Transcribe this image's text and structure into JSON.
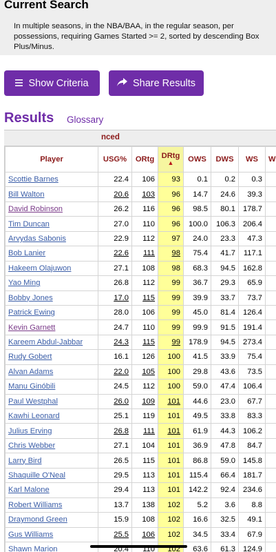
{
  "current_search": {
    "title": "Current Search",
    "description": "In multiple seasons, in the NBA/BAA, in the regular season, per possessions, requiring Games Started >= 2, sorted by descending Box Plus/Minus."
  },
  "buttons": {
    "show_criteria": "Show Criteria",
    "share_results": "Share Results"
  },
  "results": {
    "title": "Results",
    "glossary": "Glossary"
  },
  "section_label": "nced",
  "columns": [
    "Player",
    "USG%",
    "ORtg",
    "DRtg",
    "OWS",
    "DWS",
    "WS",
    "WS"
  ],
  "sort_arrow": "▲",
  "rows": [
    {
      "player": "Scottie Barnes",
      "usg": "22.4",
      "ortg": "106",
      "drtg": "93",
      "ows": "0.1",
      "dws": "0.2",
      "ws": "0.3"
    },
    {
      "player": "Bill Walton",
      "usg": "20.6",
      "ortg": "103",
      "drtg": "96",
      "ows": "14.7",
      "dws": "24.6",
      "ws": "39.3"
    },
    {
      "player": "David Robinson",
      "usg": "26.2",
      "ortg": "116",
      "drtg": "96",
      "ows": "98.5",
      "dws": "80.1",
      "ws": "178.7"
    },
    {
      "player": "Tim Duncan",
      "usg": "27.0",
      "ortg": "110",
      "drtg": "96",
      "ows": "100.0",
      "dws": "106.3",
      "ws": "206.4"
    },
    {
      "player": "Arvydas Sabonis",
      "usg": "22.9",
      "ortg": "112",
      "drtg": "97",
      "ows": "24.0",
      "dws": "23.3",
      "ws": "47.3"
    },
    {
      "player": "Bob Lanier",
      "usg": "22.6",
      "ortg": "111",
      "drtg": "98",
      "ows": "75.4",
      "dws": "41.7",
      "ws": "117.1"
    },
    {
      "player": "Hakeem Olajuwon",
      "usg": "27.1",
      "ortg": "108",
      "drtg": "98",
      "ows": "68.3",
      "dws": "94.5",
      "ws": "162.8"
    },
    {
      "player": "Yao Ming",
      "usg": "26.8",
      "ortg": "112",
      "drtg": "99",
      "ows": "36.7",
      "dws": "29.3",
      "ws": "65.9"
    },
    {
      "player": "Bobby Jones",
      "usg": "17.0",
      "ortg": "115",
      "drtg": "99",
      "ows": "39.9",
      "dws": "33.7",
      "ws": "73.7"
    },
    {
      "player": "Patrick Ewing",
      "usg": "28.0",
      "ortg": "106",
      "drtg": "99",
      "ows": "45.0",
      "dws": "81.4",
      "ws": "126.4"
    },
    {
      "player": "Kevin Garnett",
      "usg": "24.7",
      "ortg": "110",
      "drtg": "99",
      "ows": "99.9",
      "dws": "91.5",
      "ws": "191.4"
    },
    {
      "player": "Kareem Abdul-Jabbar",
      "usg": "24.3",
      "ortg": "115",
      "drtg": "99",
      "ows": "178.9",
      "dws": "94.5",
      "ws": "273.4"
    },
    {
      "player": "Rudy Gobert",
      "usg": "16.1",
      "ortg": "126",
      "drtg": "100",
      "ows": "41.5",
      "dws": "33.9",
      "ws": "75.4"
    },
    {
      "player": "Alvan Adams",
      "usg": "22.0",
      "ortg": "105",
      "drtg": "100",
      "ows": "29.8",
      "dws": "43.6",
      "ws": "73.5"
    },
    {
      "player": "Manu Ginóbili",
      "usg": "24.5",
      "ortg": "112",
      "drtg": "100",
      "ows": "59.0",
      "dws": "47.4",
      "ws": "106.4"
    },
    {
      "player": "Paul Westphal",
      "usg": "26.0",
      "ortg": "109",
      "drtg": "101",
      "ows": "44.6",
      "dws": "23.0",
      "ws": "67.7"
    },
    {
      "player": "Kawhi Leonard",
      "usg": "25.1",
      "ortg": "119",
      "drtg": "101",
      "ows": "49.5",
      "dws": "33.8",
      "ws": "83.3"
    },
    {
      "player": "Julius Erving",
      "usg": "26.8",
      "ortg": "111",
      "drtg": "101",
      "ows": "61.9",
      "dws": "44.3",
      "ws": "106.2"
    },
    {
      "player": "Chris Webber",
      "usg": "27.1",
      "ortg": "104",
      "drtg": "101",
      "ows": "36.9",
      "dws": "47.8",
      "ws": "84.7"
    },
    {
      "player": "Larry Bird",
      "usg": "26.5",
      "ortg": "115",
      "drtg": "101",
      "ows": "86.8",
      "dws": "59.0",
      "ws": "145.8"
    },
    {
      "player": "Shaquille O'Neal",
      "usg": "29.5",
      "ortg": "113",
      "drtg": "101",
      "ows": "115.4",
      "dws": "66.4",
      "ws": "181.7"
    },
    {
      "player": "Karl Malone",
      "usg": "29.4",
      "ortg": "113",
      "drtg": "101",
      "ows": "142.2",
      "dws": "92.4",
      "ws": "234.6"
    },
    {
      "player": "Robert Williams",
      "usg": "13.7",
      "ortg": "138",
      "drtg": "102",
      "ows": "5.2",
      "dws": "3.6",
      "ws": "8.8"
    },
    {
      "player": "Draymond Green",
      "usg": "15.9",
      "ortg": "108",
      "drtg": "102",
      "ows": "16.6",
      "dws": "32.5",
      "ws": "49.1"
    },
    {
      "player": "Gus Williams",
      "usg": "25.5",
      "ortg": "106",
      "drtg": "102",
      "ows": "34.5",
      "dws": "33.4",
      "ws": "67.9"
    },
    {
      "player": "Shawn Marion",
      "usg": "20.4",
      "ortg": "110",
      "drtg": "102",
      "ows": "63.6",
      "dws": "61.3",
      "ws": "124.9"
    }
  ]
}
